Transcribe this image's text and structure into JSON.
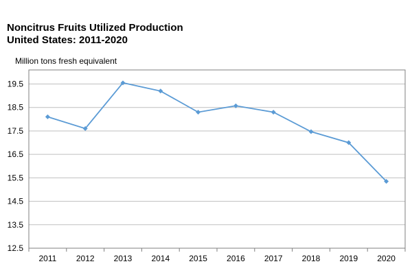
{
  "chart_data": {
    "type": "line",
    "title_line1": "Noncitrus Fruits Utilized Production",
    "title_line2": "United States: 2011-2020",
    "ylabel": "Million tons fresh equivalent",
    "xlabel": "",
    "categories": [
      "2011",
      "2012",
      "2013",
      "2014",
      "2015",
      "2016",
      "2017",
      "2018",
      "2019",
      "2020"
    ],
    "series": [
      {
        "values": [
          18.1,
          17.6,
          19.55,
          19.2,
          18.3,
          18.57,
          18.3,
          17.47,
          17.0,
          15.35
        ]
      }
    ],
    "yticks": [
      "19.5",
      "18.5",
      "17.5",
      "16.5",
      "15.5",
      "14.5",
      "13.5",
      "12.5"
    ],
    "ylim": [
      12.5,
      20.1
    ],
    "grid": true,
    "line_color": "#5b9bd5"
  }
}
